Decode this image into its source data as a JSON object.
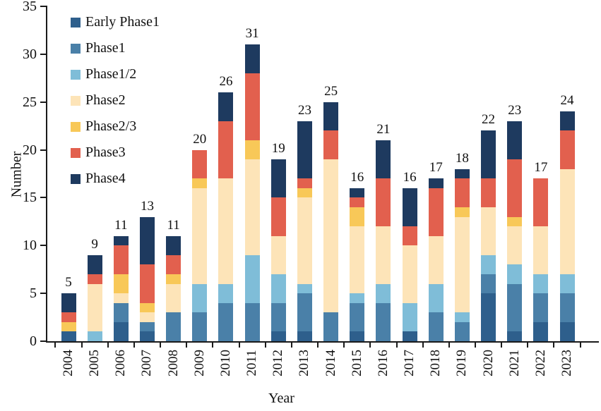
{
  "chart_data": {
    "type": "bar",
    "subtype": "stacked-vertical",
    "title": "",
    "xlabel": "Year",
    "ylabel": "Number",
    "ylim": [
      0,
      35
    ],
    "y_ticks": [
      0,
      5,
      10,
      15,
      20,
      25,
      30,
      35
    ],
    "grid": "off",
    "legend_position": "top-left-inside",
    "categories": [
      "2004",
      "2005",
      "2006",
      "2007",
      "2008",
      "2009",
      "2010",
      "2011",
      "2012",
      "2013",
      "2014",
      "2015",
      "2016",
      "2017",
      "2018",
      "2019",
      "2020",
      "2021",
      "2022",
      "2023"
    ],
    "series": [
      {
        "name": "Early Phase1",
        "color": "#2e5f8c",
        "values": [
          1,
          0,
          2,
          1,
          0,
          0,
          0,
          0,
          1,
          1,
          0,
          1,
          0,
          1,
          0,
          0,
          5,
          1,
          2,
          2
        ]
      },
      {
        "name": "Phase1",
        "color": "#4a80a8",
        "values": [
          0,
          0,
          2,
          1,
          3,
          3,
          4,
          4,
          3,
          4,
          3,
          3,
          4,
          0,
          3,
          2,
          2,
          5,
          3,
          3
        ]
      },
      {
        "name": "Phase1/2",
        "color": "#7fbdd8",
        "values": [
          0,
          1,
          0,
          0,
          0,
          3,
          2,
          5,
          3,
          1,
          0,
          1,
          2,
          3,
          3,
          1,
          2,
          2,
          2,
          2
        ]
      },
      {
        "name": "Phase2",
        "color": "#fde4b8",
        "values": [
          0,
          5,
          1,
          1,
          3,
          10,
          11,
          10,
          4,
          9,
          16,
          7,
          6,
          6,
          5,
          10,
          5,
          4,
          5,
          11
        ]
      },
      {
        "name": "Phase2/3",
        "color": "#f8c858",
        "values": [
          1,
          0,
          2,
          1,
          1,
          1,
          0,
          2,
          0,
          1,
          0,
          2,
          0,
          0,
          0,
          1,
          0,
          1,
          0,
          0
        ]
      },
      {
        "name": "Phase3",
        "color": "#e2604e",
        "values": [
          1,
          1,
          3,
          4,
          2,
          3,
          6,
          7,
          4,
          1,
          3,
          1,
          5,
          2,
          5,
          3,
          3,
          6,
          5,
          4
        ]
      },
      {
        "name": "Phase4",
        "color": "#1e3a5f",
        "values": [
          2,
          2,
          1,
          5,
          2,
          0,
          3,
          3,
          4,
          6,
          3,
          1,
          4,
          4,
          1,
          1,
          5,
          4,
          0,
          2
        ]
      }
    ],
    "bar_total_labels": [
      5,
      9,
      11,
      13,
      11,
      20,
      26,
      31,
      19,
      23,
      25,
      16,
      21,
      16,
      17,
      18,
      22,
      23,
      17,
      24
    ]
  }
}
